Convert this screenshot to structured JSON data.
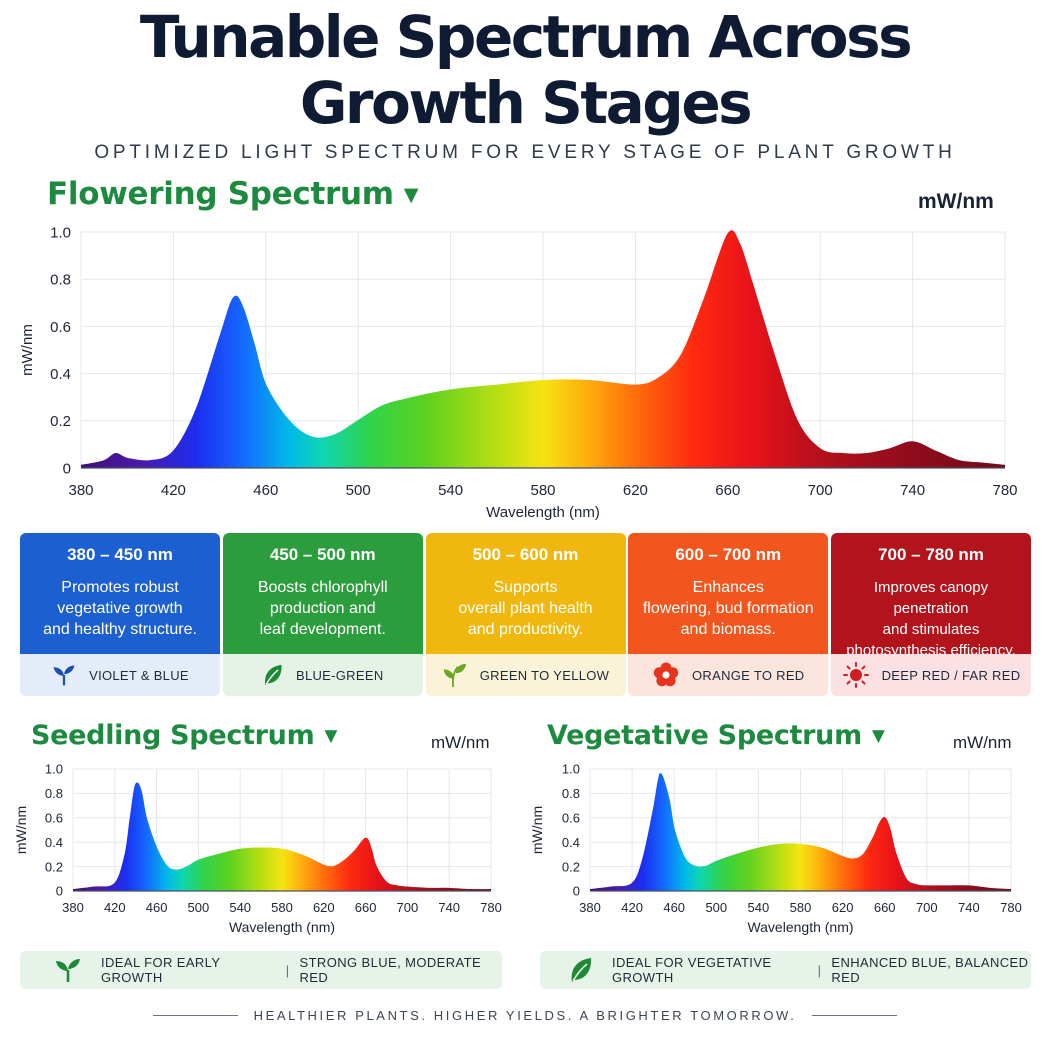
{
  "header": {
    "title_line1": "Tunable Spectrum Across",
    "title_line2": "Growth Stages",
    "subtitle": "OPTIMIZED LIGHT SPECTRUM FOR EVERY STAGE OF PLANT GROWTH"
  },
  "chart_data": [
    {
      "id": "flowering",
      "type": "area",
      "title": "Flowering Spectrum",
      "unit": "mW/nm",
      "xlabel": "Wavelength (nm)",
      "ylabel": "mW/nm",
      "xlim": [
        380,
        780
      ],
      "ylim": [
        0,
        1.0
      ],
      "xticks": [
        "380",
        "420",
        "460",
        "500",
        "540",
        "580",
        "620",
        "660",
        "700",
        "740",
        "780"
      ],
      "yticks": [
        "0",
        "0.2",
        "0.4",
        "0.6",
        "0.8",
        "1.0"
      ],
      "grid": true,
      "x": [
        380,
        390,
        395,
        400,
        410,
        420,
        430,
        440,
        446,
        450,
        455,
        460,
        470,
        480,
        490,
        500,
        510,
        520,
        540,
        560,
        580,
        600,
        620,
        630,
        640,
        650,
        660,
        665,
        670,
        680,
        690,
        700,
        710,
        720,
        730,
        740,
        750,
        760,
        770,
        780
      ],
      "y": [
        0.01,
        0.03,
        0.06,
        0.04,
        0.03,
        0.07,
        0.25,
        0.55,
        0.72,
        0.68,
        0.52,
        0.35,
        0.2,
        0.13,
        0.14,
        0.2,
        0.26,
        0.29,
        0.33,
        0.35,
        0.37,
        0.37,
        0.35,
        0.38,
        0.48,
        0.72,
        0.99,
        0.95,
        0.8,
        0.48,
        0.2,
        0.08,
        0.06,
        0.06,
        0.08,
        0.11,
        0.07,
        0.03,
        0.02,
        0.01
      ]
    },
    {
      "id": "seedling",
      "type": "area",
      "title": "Seedling Spectrum",
      "unit": "mW/nm",
      "xlabel": "Wavelength (nm)",
      "ylabel": "mW/nm",
      "xlim": [
        380,
        780
      ],
      "ylim": [
        0,
        1.0
      ],
      "xticks": [
        "380",
        "420",
        "460",
        "500",
        "540",
        "580",
        "620",
        "660",
        "700",
        "740",
        "780"
      ],
      "yticks": [
        "0",
        "0.2",
        "0.4",
        "0.6",
        "0.8",
        "1.0"
      ],
      "grid": true,
      "x": [
        380,
        400,
        420,
        430,
        435,
        440,
        445,
        450,
        460,
        470,
        480,
        490,
        500,
        520,
        540,
        560,
        580,
        600,
        620,
        630,
        640,
        650,
        660,
        665,
        670,
        680,
        690,
        700,
        720,
        740,
        760,
        780
      ],
      "y": [
        0.01,
        0.03,
        0.06,
        0.3,
        0.6,
        0.87,
        0.82,
        0.6,
        0.35,
        0.2,
        0.17,
        0.2,
        0.25,
        0.3,
        0.34,
        0.35,
        0.34,
        0.29,
        0.21,
        0.2,
        0.25,
        0.33,
        0.43,
        0.35,
        0.2,
        0.07,
        0.04,
        0.03,
        0.02,
        0.02,
        0.01,
        0.01
      ]
    },
    {
      "id": "vegetative",
      "type": "area",
      "title": "Vegetative Spectrum",
      "unit": "mW/nm",
      "xlabel": "Wavelength (nm)",
      "ylabel": "mW/nm",
      "xlim": [
        380,
        780
      ],
      "ylim": [
        0,
        1.0
      ],
      "xticks": [
        "380",
        "420",
        "460",
        "500",
        "540",
        "580",
        "620",
        "660",
        "700",
        "740",
        "780"
      ],
      "yticks": [
        "0",
        "0.2",
        "0.4",
        "0.6",
        "0.8",
        "1.0"
      ],
      "grid": true,
      "x": [
        380,
        400,
        420,
        430,
        440,
        445,
        448,
        455,
        460,
        470,
        480,
        490,
        500,
        520,
        540,
        560,
        580,
        600,
        620,
        630,
        640,
        650,
        655,
        660,
        665,
        670,
        680,
        690,
        700,
        720,
        740,
        760,
        780
      ],
      "y": [
        0.01,
        0.03,
        0.06,
        0.25,
        0.65,
        0.9,
        0.95,
        0.75,
        0.5,
        0.27,
        0.2,
        0.2,
        0.24,
        0.3,
        0.35,
        0.38,
        0.38,
        0.35,
        0.28,
        0.26,
        0.3,
        0.45,
        0.55,
        0.6,
        0.5,
        0.32,
        0.1,
        0.05,
        0.04,
        0.04,
        0.04,
        0.02,
        0.01
      ]
    }
  ],
  "cards": [
    {
      "range": "380 – 450 nm",
      "desc": [
        "Promotes robust",
        "vegetative growth",
        "and healthy structure."
      ],
      "tag": "VIOLET & BLUE",
      "icon": "sprout-icon",
      "color": "#1b5fd0",
      "tag_bg": "#e4ecf9",
      "icon_color": "#1e4fae"
    },
    {
      "range": "450 – 500 nm",
      "desc": [
        "Boosts chlorophyll",
        "production and",
        "leaf development."
      ],
      "tag": "BLUE-GREEN",
      "icon": "leaf-icon",
      "color": "#2c9d3d",
      "tag_bg": "#e5f3e6",
      "icon_color": "#1e8a35"
    },
    {
      "range": "500 – 600 nm",
      "desc": [
        "Supports",
        "overall plant health",
        "and productivity."
      ],
      "tag": "GREEN TO YELLOW",
      "icon": "leaves-icon",
      "color": "#f0b80f",
      "tag_bg": "#fbf3d8",
      "icon_color": "#6aa728"
    },
    {
      "range": "600 – 700 nm",
      "desc": [
        "Enhances",
        "flowering, bud formation",
        "and biomass."
      ],
      "tag": "ORANGE TO RED",
      "icon": "flower-icon",
      "color": "#f2561e",
      "tag_bg": "#fce5dc",
      "icon_color": "#e8331c"
    },
    {
      "range": "700 – 780 nm",
      "desc": [
        "Improves canopy penetration",
        "and stimulates",
        "photosynthesis efficiency."
      ],
      "tag": "DEEP RED / FAR RED",
      "icon": "sun-icon",
      "color": "#b3141c",
      "tag_bg": "#fbe1e3",
      "icon_color": "#d01e22"
    }
  ],
  "banners": [
    {
      "left": "IDEAL FOR EARLY GROWTH",
      "right": "STRONG BLUE, MODERATE RED",
      "icon": "sprout-icon"
    },
    {
      "left": "IDEAL FOR VEGETATIVE GROWTH",
      "right": "ENHANCED BLUE, BALANCED RED",
      "icon": "leaf-icon"
    }
  ],
  "banner_separator": "|",
  "footer": {
    "text": "HEALTHIER PLANTS. HIGHER YIELDS. A BRIGHTER TOMORROW."
  },
  "colors": {
    "title_green": "#1c8a3f",
    "banner_bg": "#e6f3e8"
  }
}
